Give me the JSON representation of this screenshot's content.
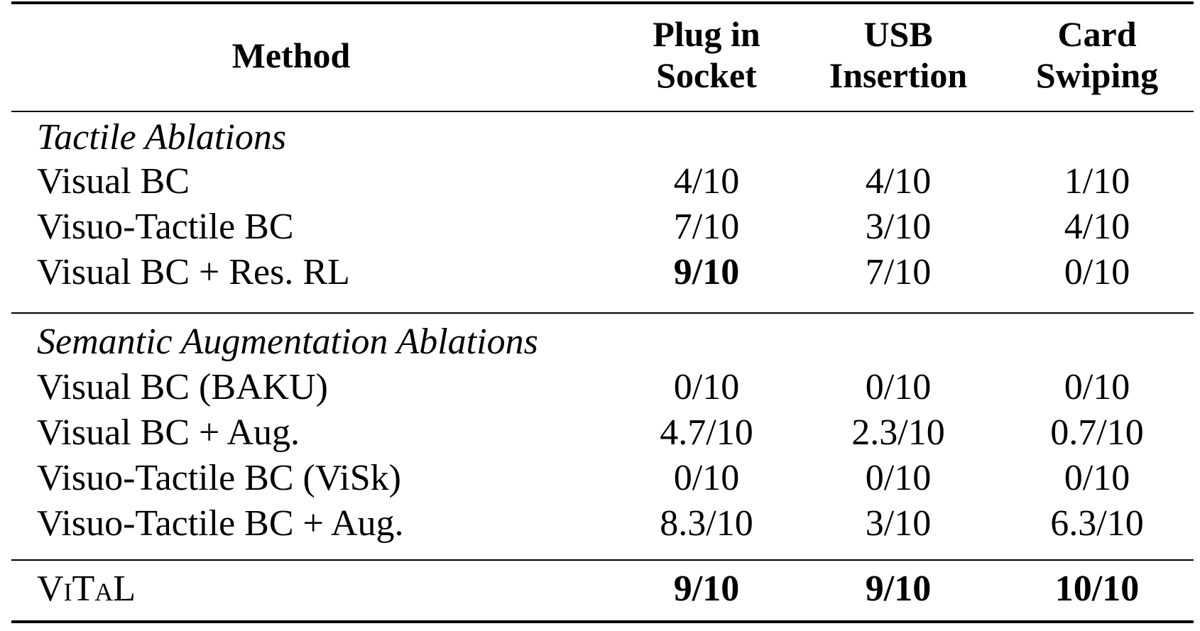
{
  "header": {
    "method": "Method",
    "col1_line1": "Plug in",
    "col1_line2": "Socket",
    "col2_line1": "USB",
    "col2_line2": "Insertion",
    "col3_line1": "Card",
    "col3_line2": "Swiping"
  },
  "sections": [
    {
      "title": "Tactile Ablations",
      "rows": [
        {
          "method": "Visual BC",
          "plug": "4/10",
          "usb": "4/10",
          "card": "1/10"
        },
        {
          "method": "Visuo-Tactile BC",
          "plug": "7/10",
          "usb": "3/10",
          "card": "4/10"
        },
        {
          "method": "Visual BC + Res. RL",
          "plug": "9/10",
          "usb": "7/10",
          "card": "0/10"
        }
      ]
    },
    {
      "title": "Semantic Augmentation Ablations",
      "rows": [
        {
          "method": "Visual BC (BAKU)",
          "plug": "0/10",
          "usb": "0/10",
          "card": "0/10"
        },
        {
          "method": "Visual BC + Aug.",
          "plug": "4.7/10",
          "usb": "2.3/10",
          "card": "0.7/10"
        },
        {
          "method": "Visuo-Tactile BC (ViSk)",
          "plug": "0/10",
          "usb": "0/10",
          "card": "0/10"
        },
        {
          "method": "Visuo-Tactile BC + Aug.",
          "plug": "8.3/10",
          "usb": "3/10",
          "card": "6.3/10"
        }
      ]
    }
  ],
  "final": {
    "method": "ViTaL",
    "plug": "9/10",
    "usb": "9/10",
    "card": "10/10"
  }
}
